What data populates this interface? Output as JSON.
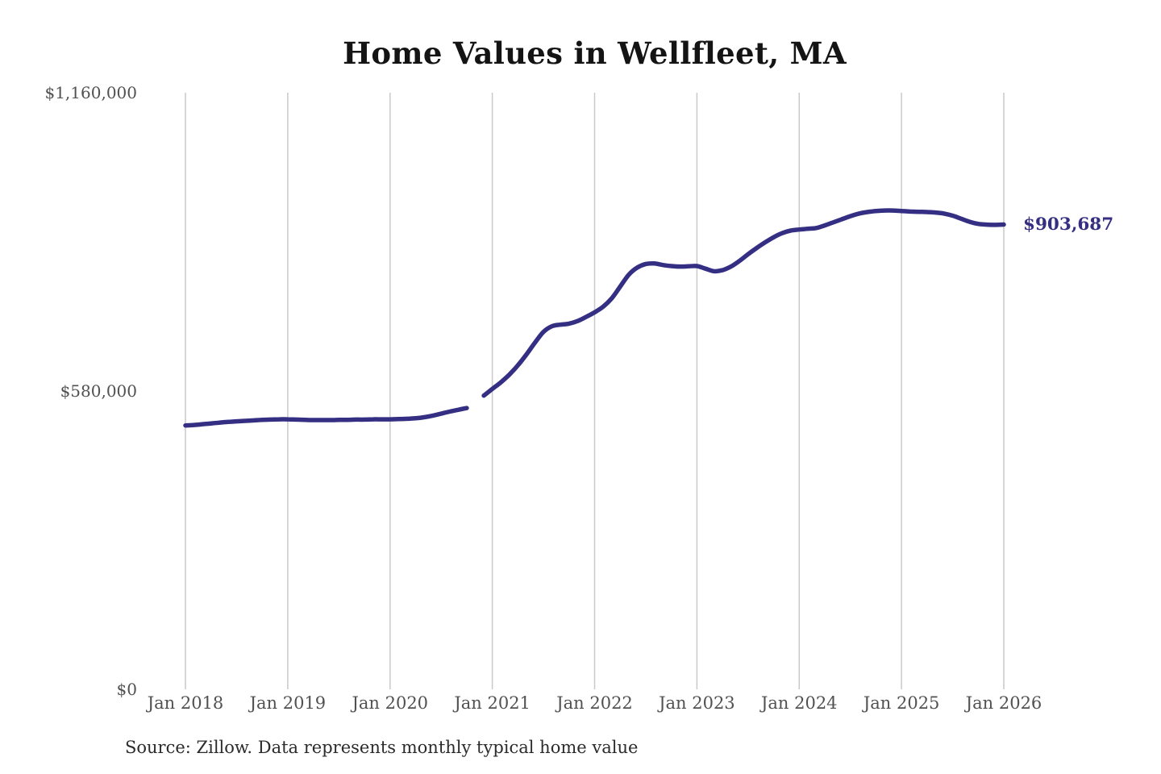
{
  "header": {
    "title": "Home Values in Wellfleet, MA"
  },
  "annotation": {
    "final_value_label": "$903,687"
  },
  "footer": {
    "source_note": "Source: Zillow. Data represents monthly typical home value"
  },
  "colors": {
    "line": "#342f82",
    "end_label": "#342f82",
    "grid": "#c9c9c9",
    "axis_text": "#515151",
    "title_text": "#141414",
    "source_text": "#2b2b2b",
    "background": "#ffffff"
  },
  "chart_data": {
    "type": "line",
    "title": "Home Values in Wellfleet, MA",
    "xlabel": "",
    "ylabel": "",
    "x_start": "2018-01",
    "x_interval": "month",
    "x_tick_labels": [
      "Jan 2018",
      "Jan 2019",
      "Jan 2020",
      "Jan 2021",
      "Jan 2022",
      "Jan 2023",
      "Jan 2024",
      "Jan 2025",
      "Jan 2026"
    ],
    "y_ticks": [
      0,
      580000,
      1160000
    ],
    "y_tick_labels": [
      "$0",
      "$580,000",
      "$1,160,000"
    ],
    "ylim": [
      0,
      1160000
    ],
    "grid": "vertical-only",
    "gap_note": "no data for Nov 2020 (visible break in line)",
    "final_value": 903687,
    "series": [
      {
        "name": "Monthly typical home value",
        "values": [
          513000,
          514000,
          515500,
          517000,
          518500,
          520000,
          521000,
          522000,
          523000,
          524000,
          524500,
          525000,
          525000,
          524500,
          524000,
          523500,
          523500,
          523500,
          524000,
          524000,
          524500,
          524500,
          525000,
          525000,
          525000,
          525500,
          526000,
          527000,
          529000,
          532000,
          536000,
          540000,
          543500,
          547000,
          null,
          571000,
          584000,
          597000,
          612000,
          630000,
          651000,
          674000,
          695000,
          706000,
          709000,
          711000,
          716000,
          724000,
          733000,
          744000,
          760000,
          783000,
          806000,
          820000,
          827000,
          828000,
          825000,
          823000,
          822000,
          822500,
          823000,
          818000,
          813000,
          815000,
          822000,
          833000,
          846000,
          858000,
          869000,
          879000,
          887000,
          892000,
          894000,
          895500,
          897000,
          902000,
          908000,
          914000,
          920000,
          925000,
          928000,
          930000,
          931000,
          931000,
          930000,
          929000,
          928500,
          928000,
          927000,
          925000,
          921000,
          915000,
          909000,
          905000,
          903500,
          903000,
          903687
        ]
      }
    ]
  }
}
